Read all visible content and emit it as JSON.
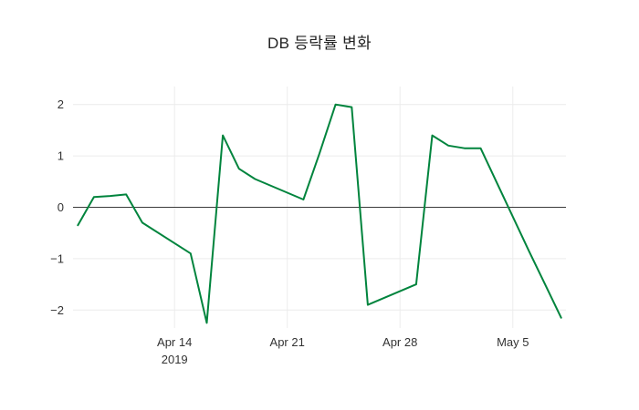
{
  "chart_data": {
    "type": "line",
    "title": "DB 등락률 변화",
    "line_color": "#00843d",
    "grid_color": "#ececec",
    "zero_line_color": "#3a3a3a",
    "grid": true,
    "legend": "none",
    "xlabel": "",
    "ylabel": "",
    "ylim": [
      -2.35,
      2.35
    ],
    "x": [
      "2019-04-08",
      "2019-04-09",
      "2019-04-10",
      "2019-04-11",
      "2019-04-12",
      "2019-04-15",
      "2019-04-16",
      "2019-04-17",
      "2019-04-18",
      "2019-04-19",
      "2019-04-22",
      "2019-04-23",
      "2019-04-24",
      "2019-04-25",
      "2019-04-26",
      "2019-04-29",
      "2019-04-30",
      "2019-05-01",
      "2019-05-02",
      "2019-05-03",
      "2019-05-06",
      "2019-05-07",
      "2019-05-08"
    ],
    "y": [
      -0.35,
      0.2,
      0.22,
      0.25,
      -0.3,
      -0.9,
      -2.25,
      1.4,
      0.75,
      0.55,
      0.15,
      1.05,
      2.0,
      1.95,
      -1.9,
      -1.5,
      1.4,
      1.2,
      1.15,
      1.15,
      -0.85,
      -1.5,
      -2.15
    ],
    "yticks": [
      {
        "value": -2,
        "label": "−2"
      },
      {
        "value": -1,
        "label": "−1"
      },
      {
        "value": 0,
        "label": "0"
      },
      {
        "value": 1,
        "label": "1"
      },
      {
        "value": 2,
        "label": "2"
      }
    ],
    "xticks": [
      {
        "date": "2019-04-14",
        "label": "Apr 14",
        "sublabel": "2019"
      },
      {
        "date": "2019-04-21",
        "label": "Apr 21"
      },
      {
        "date": "2019-04-28",
        "label": "Apr 28"
      },
      {
        "date": "2019-05-05",
        "label": "May 5"
      }
    ]
  }
}
